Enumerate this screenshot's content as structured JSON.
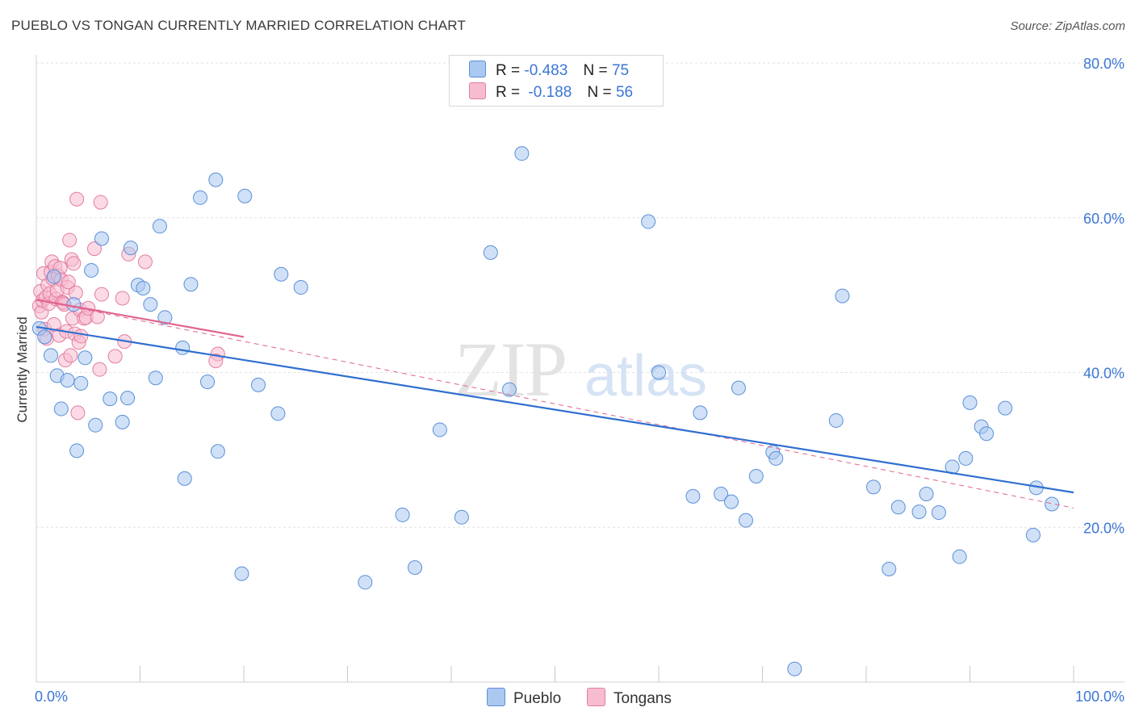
{
  "title": "PUEBLO VS TONGAN CURRENTLY MARRIED CORRELATION CHART",
  "source": "Source: ZipAtlas.com",
  "watermark": {
    "zip": "ZIP",
    "atlas": "atlas"
  },
  "legend": {
    "rows": [
      {
        "r_label": "R =",
        "r_value": "-0.483",
        "n_label": "N =",
        "n_value": "75"
      },
      {
        "r_label": "R =",
        "r_value": "-0.188",
        "n_label": "N =",
        "n_value": "56"
      }
    ]
  },
  "bottom_legend": {
    "pueblo": "Pueblo",
    "tongans": "Tongans"
  },
  "colors": {
    "pueblo_fill": "#aac8f0",
    "pueblo_stroke": "#5b8fd8",
    "pueblo_line": "#2f6fd0",
    "tongan_fill": "#f7bcd0",
    "tongan_stroke": "#e37da0",
    "tongan_line": "#e0638e",
    "tick_label": "#3a76d6",
    "grid": "#e2e2e2"
  },
  "chart_data": {
    "type": "scatter",
    "title": "PUEBLO VS TONGAN CURRENTLY MARRIED CORRELATION CHART",
    "xlabel": "",
    "ylabel": "Currently Married",
    "xlim": [
      0,
      100
    ],
    "ylim": [
      0,
      80
    ],
    "x_tick_labels": [
      "0.0%",
      "100.0%"
    ],
    "y_ticks": [
      20,
      40,
      60,
      80
    ],
    "y_tick_labels": [
      "20.0%",
      "40.0%",
      "60.0%",
      "80.0%"
    ],
    "grid": true,
    "legend_position": "top-center",
    "series": [
      {
        "name": "Pueblo",
        "r": -0.483,
        "n": 75,
        "trend": {
          "x": [
            0,
            100
          ],
          "y": [
            45.9,
            24.5
          ]
        },
        "points": [
          [
            0.3,
            45.7
          ],
          [
            1.4,
            42.2
          ],
          [
            2.0,
            39.6
          ],
          [
            2.4,
            35.3
          ],
          [
            3.0,
            39.0
          ],
          [
            3.6,
            48.8
          ],
          [
            3.9,
            29.9
          ],
          [
            4.3,
            38.6
          ],
          [
            4.7,
            41.9
          ],
          [
            5.3,
            53.2
          ],
          [
            5.7,
            33.2
          ],
          [
            6.3,
            57.3
          ],
          [
            7.1,
            36.6
          ],
          [
            8.3,
            33.6
          ],
          [
            8.8,
            36.7
          ],
          [
            9.1,
            56.1
          ],
          [
            9.8,
            51.3
          ],
          [
            10.3,
            50.9
          ],
          [
            11.0,
            48.8
          ],
          [
            11.5,
            39.3
          ],
          [
            11.9,
            58.9
          ],
          [
            12.4,
            47.1
          ],
          [
            14.1,
            43.2
          ],
          [
            14.3,
            26.3
          ],
          [
            14.9,
            51.4
          ],
          [
            15.8,
            62.6
          ],
          [
            16.5,
            38.8
          ],
          [
            17.3,
            64.9
          ],
          [
            17.5,
            29.8
          ],
          [
            19.8,
            14.0
          ],
          [
            20.1,
            62.8
          ],
          [
            21.4,
            38.4
          ],
          [
            23.3,
            34.7
          ],
          [
            23.6,
            52.7
          ],
          [
            25.5,
            51.0
          ],
          [
            31.7,
            12.9
          ],
          [
            35.3,
            21.6
          ],
          [
            36.5,
            14.8
          ],
          [
            38.9,
            32.6
          ],
          [
            41.0,
            21.3
          ],
          [
            43.8,
            55.5
          ],
          [
            45.6,
            37.8
          ],
          [
            46.8,
            68.3
          ],
          [
            59.0,
            59.5
          ],
          [
            60.0,
            40.0
          ],
          [
            63.3,
            24.0
          ],
          [
            64.0,
            34.8
          ],
          [
            66.0,
            24.3
          ],
          [
            67.0,
            23.3
          ],
          [
            67.7,
            38.0
          ],
          [
            68.4,
            20.9
          ],
          [
            69.4,
            26.6
          ],
          [
            71.0,
            29.7
          ],
          [
            71.3,
            28.9
          ],
          [
            73.1,
            1.7
          ],
          [
            77.1,
            33.8
          ],
          [
            77.7,
            49.9
          ],
          [
            80.7,
            25.2
          ],
          [
            82.2,
            14.6
          ],
          [
            83.1,
            22.6
          ],
          [
            85.1,
            22.0
          ],
          [
            85.8,
            24.3
          ],
          [
            87.0,
            21.9
          ],
          [
            88.3,
            27.8
          ],
          [
            89.0,
            16.2
          ],
          [
            89.6,
            28.9
          ],
          [
            90.0,
            36.1
          ],
          [
            91.1,
            33.0
          ],
          [
            91.6,
            32.1
          ],
          [
            93.4,
            35.4
          ],
          [
            96.1,
            19.0
          ],
          [
            96.4,
            25.1
          ],
          [
            97.9,
            23.0
          ],
          [
            0.8,
            44.6
          ],
          [
            1.7,
            52.4
          ]
        ]
      },
      {
        "name": "Tongans",
        "r": -0.188,
        "n": 56,
        "trend_solid": {
          "x": [
            0,
            20
          ],
          "y": [
            49.4,
            44.6
          ]
        },
        "trend_dashed": {
          "x": [
            0,
            100
          ],
          "y": [
            49.4,
            22.5
          ]
        },
        "points": [
          [
            0.3,
            48.6
          ],
          [
            0.4,
            50.5
          ],
          [
            0.5,
            47.8
          ],
          [
            0.6,
            49.3
          ],
          [
            0.7,
            52.8
          ],
          [
            0.8,
            45.6
          ],
          [
            0.9,
            49.7
          ],
          [
            1.0,
            44.4
          ],
          [
            1.1,
            51.3
          ],
          [
            1.2,
            48.9
          ],
          [
            1.3,
            50.2
          ],
          [
            1.4,
            53.0
          ],
          [
            1.5,
            54.3
          ],
          [
            1.6,
            52.1
          ],
          [
            1.7,
            46.2
          ],
          [
            1.8,
            53.7
          ],
          [
            1.9,
            49.5
          ],
          [
            2.0,
            50.6
          ],
          [
            2.1,
            52.5
          ],
          [
            2.2,
            44.8
          ],
          [
            2.3,
            53.5
          ],
          [
            2.4,
            52.0
          ],
          [
            2.5,
            49.1
          ],
          [
            2.6,
            49.0
          ],
          [
            2.7,
            48.8
          ],
          [
            2.8,
            41.6
          ],
          [
            2.9,
            45.3
          ],
          [
            3.0,
            51.0
          ],
          [
            3.1,
            51.7
          ],
          [
            3.2,
            57.1
          ],
          [
            3.3,
            42.2
          ],
          [
            3.4,
            54.6
          ],
          [
            3.5,
            47.0
          ],
          [
            3.6,
            54.1
          ],
          [
            3.7,
            45.0
          ],
          [
            3.8,
            50.3
          ],
          [
            3.9,
            62.4
          ],
          [
            4.0,
            34.8
          ],
          [
            4.1,
            43.9
          ],
          [
            4.2,
            48.1
          ],
          [
            4.3,
            44.7
          ],
          [
            4.6,
            47.0
          ],
          [
            4.8,
            47.1
          ],
          [
            5.0,
            48.3
          ],
          [
            5.6,
            56.0
          ],
          [
            5.9,
            47.2
          ],
          [
            6.1,
            40.4
          ],
          [
            6.2,
            62.0
          ],
          [
            6.3,
            50.1
          ],
          [
            7.6,
            42.1
          ],
          [
            8.3,
            49.6
          ],
          [
            8.5,
            44.0
          ],
          [
            8.9,
            55.3
          ],
          [
            10.5,
            54.3
          ],
          [
            17.5,
            42.4
          ],
          [
            17.3,
            41.5
          ]
        ]
      }
    ]
  }
}
